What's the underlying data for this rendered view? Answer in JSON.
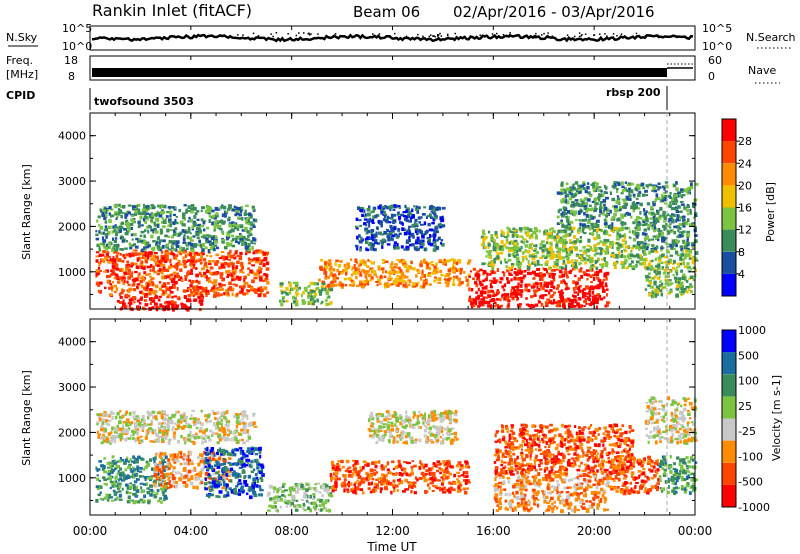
{
  "header": {
    "title": "Rankin Inlet (fitACF)",
    "beam": "Beam 06",
    "dates": "02/Apr/2016 - 03/Apr/2016"
  },
  "panels": {
    "nsky": {
      "left_label": "N.Sky",
      "right_label": "N.Search",
      "y_top": "10^5",
      "y_bottom": "10^0"
    },
    "freq": {
      "left_label_1": "Freq.",
      "left_label_2": "[MHz]",
      "right_label": "Nave",
      "y_top": "18",
      "y_bottom": "8",
      "y_right_top": "60",
      "y_right_bottom": "0"
    },
    "cpid": {
      "label": "CPID",
      "mode_1": "twofsound 3503",
      "mode_2": "rbsp 200"
    }
  },
  "colors": {
    "power": [
      "#0000ff",
      "#1a4fa0",
      "#3a8c5a",
      "#7bc440",
      "#f0c000",
      "#ff8c00",
      "#ff4500",
      "#ff0000"
    ],
    "velocity": [
      "#ff0000",
      "#ff4500",
      "#ff8c00",
      "#c8c8c8",
      "#7bc440",
      "#3a8c5a",
      "#1a6fa0",
      "#0000ff"
    ]
  },
  "chart_data": [
    {
      "type": "heatmap",
      "name": "power",
      "ylabel": "Slant Range [km]",
      "yticks": [
        "1000",
        "2000",
        "3000",
        "4000"
      ],
      "ylim": [
        180,
        4500
      ],
      "colorbar_label": "Power [dB]",
      "colorbar_ticks": [
        "4",
        "8",
        "12",
        "16",
        "20",
        "24",
        "28"
      ],
      "xticks": [
        "00:00",
        "04:00",
        "08:00",
        "12:00",
        "16:00",
        "20:00",
        "00:00"
      ],
      "xlim_hours": [
        0,
        24
      ],
      "regions": [
        {
          "t0": 0.2,
          "t1": 7.0,
          "r0": 500,
          "r1": 1500,
          "level": 6
        },
        {
          "t0": 0.2,
          "t1": 6.5,
          "r0": 1500,
          "r1": 2500,
          "level": 2
        },
        {
          "t0": 1.0,
          "t1": 4.5,
          "r0": 200,
          "r1": 500,
          "level": 7
        },
        {
          "t0": 7.5,
          "t1": 9.5,
          "r0": 300,
          "r1": 800,
          "level": 3
        },
        {
          "t0": 9.0,
          "t1": 15.0,
          "r0": 700,
          "r1": 1300,
          "level": 5
        },
        {
          "t0": 10.5,
          "t1": 14.0,
          "r0": 1500,
          "r1": 2500,
          "level": 1
        },
        {
          "t0": 15.0,
          "t1": 20.5,
          "r0": 250,
          "r1": 1100,
          "level": 7
        },
        {
          "t0": 15.5,
          "t1": 22.0,
          "r0": 1100,
          "r1": 2000,
          "level": 3
        },
        {
          "t0": 18.5,
          "t1": 21.5,
          "r0": 2000,
          "r1": 3000,
          "level": 2
        },
        {
          "t0": 21.5,
          "t1": 24.0,
          "r0": 1500,
          "r1": 3000,
          "level": 2
        },
        {
          "t0": 22.0,
          "t1": 24.0,
          "r0": 500,
          "r1": 1500,
          "level": 3
        }
      ]
    },
    {
      "type": "heatmap",
      "name": "velocity",
      "ylabel": "Slant Range [km]",
      "yticks": [
        "1000",
        "2000",
        "3000",
        "4000"
      ],
      "ylim": [
        180,
        4500
      ],
      "colorbar_label": "Velocity [m s-1]",
      "colorbar_ticks": [
        "1000",
        "500",
        "100",
        "25",
        "-25",
        "-100",
        "-500",
        "-1000"
      ],
      "xticks": [
        "00:00",
        "04:00",
        "08:00",
        "12:00",
        "16:00",
        "20:00",
        "00:00"
      ],
      "xaxis_label": "Time UT",
      "xlim_hours": [
        0,
        24
      ],
      "regions": [
        {
          "t0": 0.2,
          "t1": 6.5,
          "r0": 1800,
          "r1": 2500,
          "level": 3
        },
        {
          "t0": 0.2,
          "t1": 3.0,
          "r0": 500,
          "r1": 1500,
          "level": 5
        },
        {
          "t0": 2.5,
          "t1": 5.5,
          "r0": 800,
          "r1": 1600,
          "level": 2
        },
        {
          "t0": 4.5,
          "t1": 6.8,
          "r0": 600,
          "r1": 1700,
          "level": 6
        },
        {
          "t0": 7.0,
          "t1": 9.5,
          "r0": 300,
          "r1": 900,
          "level": 4
        },
        {
          "t0": 9.5,
          "t1": 15.0,
          "r0": 700,
          "r1": 1400,
          "level": 1
        },
        {
          "t0": 11.0,
          "t1": 14.5,
          "r0": 1800,
          "r1": 2500,
          "level": 3
        },
        {
          "t0": 16.0,
          "t1": 20.5,
          "r0": 300,
          "r1": 1100,
          "level": 2
        },
        {
          "t0": 16.0,
          "t1": 21.5,
          "r0": 1100,
          "r1": 2200,
          "level": 1
        },
        {
          "t0": 20.5,
          "t1": 22.5,
          "r0": 700,
          "r1": 1500,
          "level": 1
        },
        {
          "t0": 22.0,
          "t1": 24.0,
          "r0": 1800,
          "r1": 2800,
          "level": 3
        },
        {
          "t0": 22.5,
          "t1": 24.0,
          "r0": 700,
          "r1": 1500,
          "level": 5
        }
      ]
    }
  ]
}
